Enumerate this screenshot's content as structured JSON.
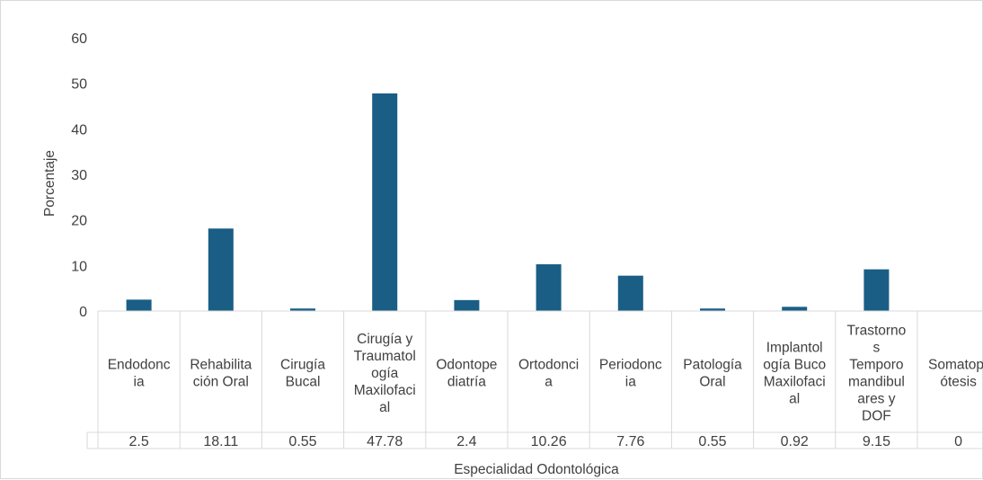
{
  "chart_data": {
    "type": "bar",
    "xlabel": "Especialidad Odontológica",
    "ylabel": "Porcentaje",
    "ylim": [
      0,
      60
    ],
    "yticks": [
      0,
      10,
      20,
      30,
      40,
      50,
      60
    ],
    "grid": false,
    "legend": "none",
    "bar_color": "#1a5e85",
    "data_table": true,
    "categories": [
      [
        "Endodonc",
        "ia"
      ],
      [
        "Rehabilita",
        "ción Oral"
      ],
      [
        "Cirugía",
        "Bucal"
      ],
      [
        "Cirugía y",
        "Traumatol",
        "ogía",
        "Maxilofaci",
        "al"
      ],
      [
        "Odontope",
        "diatría"
      ],
      [
        "Ortodonci",
        "a"
      ],
      [
        "Periodonc",
        "ia"
      ],
      [
        "Patología",
        "Oral"
      ],
      [
        "Implantol",
        "ogía Buco",
        "Maxilofaci",
        "al"
      ],
      [
        "Trastorno",
        "s",
        "Temporo",
        "mandibul",
        "ares y",
        "DOF"
      ],
      [
        "Somatopr",
        "ótesis"
      ]
    ],
    "values": [
      2.5,
      18.11,
      0.55,
      47.78,
      2.4,
      10.26,
      7.76,
      0.55,
      0.92,
      9.15,
      0
    ],
    "value_labels": [
      "2.5",
      "18.11",
      "0.55",
      "47.78",
      "2.4",
      "10.26",
      "7.76",
      "0.55",
      "0.92",
      "9.15",
      "0"
    ]
  }
}
